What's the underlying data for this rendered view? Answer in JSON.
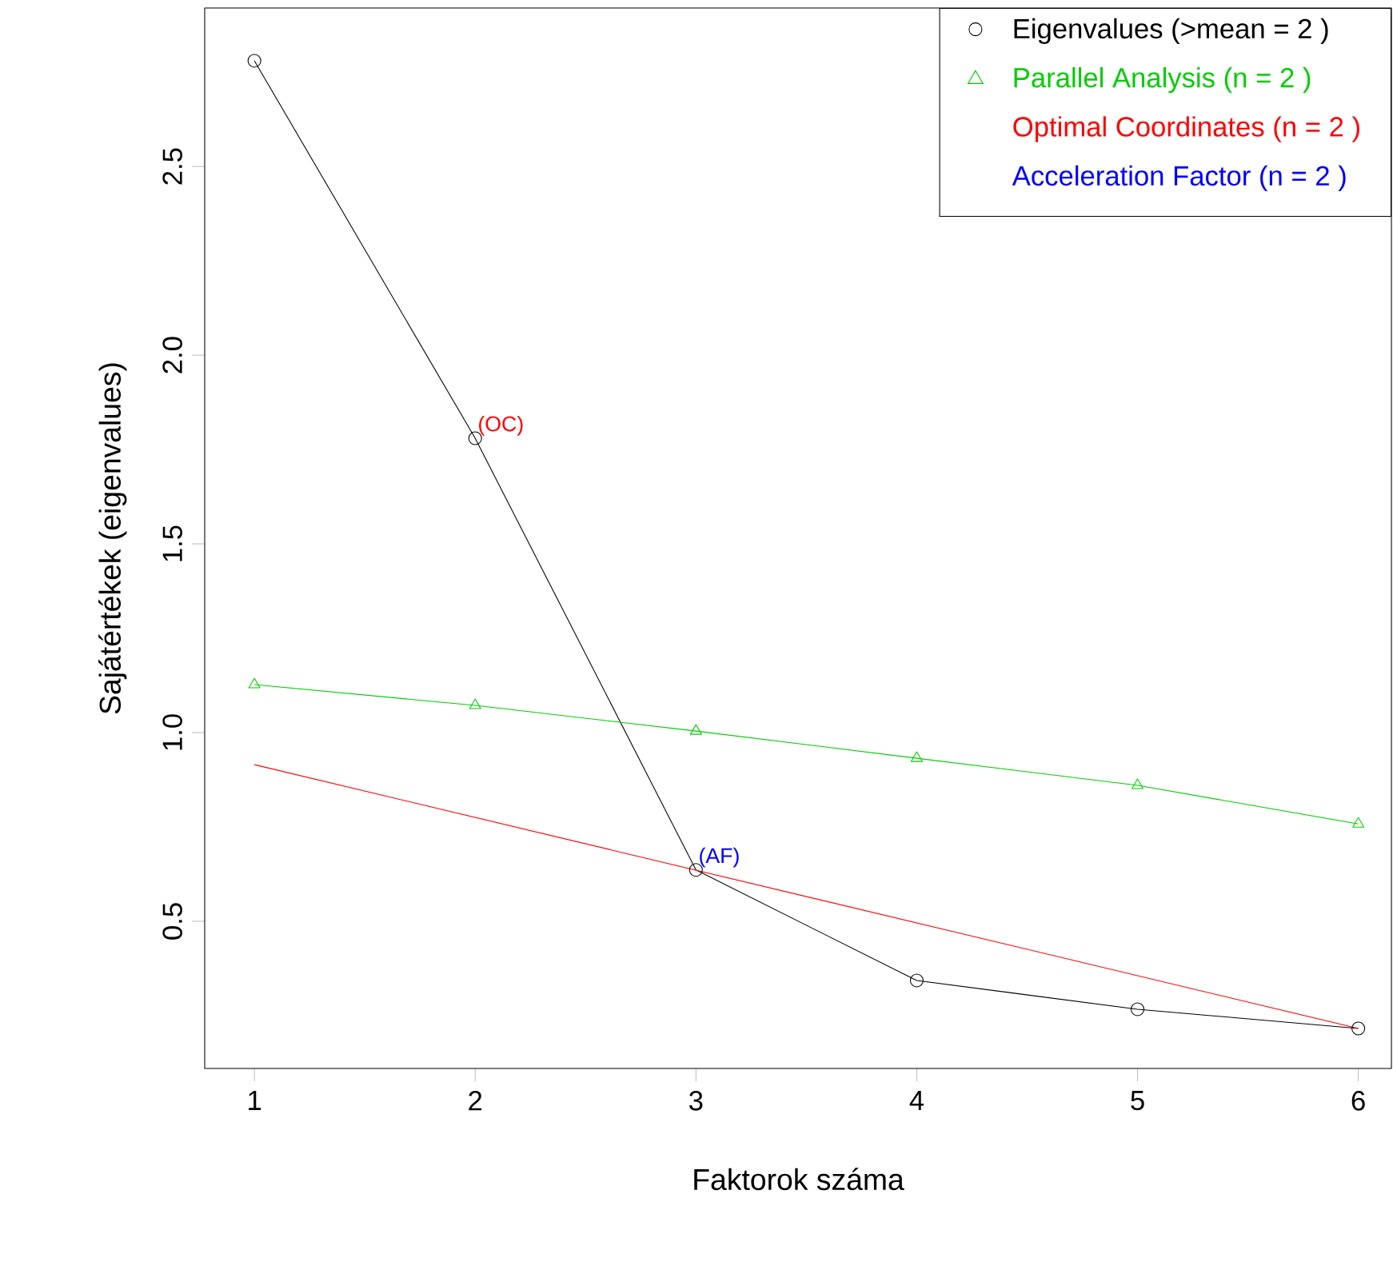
{
  "chart_data": {
    "type": "line",
    "xlabel": "Faktorok száma",
    "ylabel": "Sajátértékek (eigenvalues)",
    "x": [
      1,
      2,
      3,
      4,
      5,
      6
    ],
    "series": [
      {
        "name": "Eigenvalues (>mean  =  2 )",
        "color": "#000000",
        "marker": "circle",
        "values": [
          2.78,
          1.78,
          0.636,
          0.343,
          0.267,
          0.216
        ]
      },
      {
        "name": "Parallel Analysis (n =  2 )",
        "color": "#00cd00",
        "marker": "triangle",
        "values": [
          1.127,
          1.072,
          1.004,
          0.932,
          0.86,
          0.758
        ]
      },
      {
        "name": "Optimal Coordinates (n =  2 )",
        "color": "#ff0000",
        "marker": "none",
        "x": [
          1,
          6
        ],
        "values": [
          0.915,
          0.216
        ]
      },
      {
        "name": "Acceleration Factor (n =  2 )",
        "color": "#0000ff",
        "marker": "none",
        "values": [
          null,
          null,
          null,
          null,
          null,
          null
        ]
      }
    ],
    "annotations": [
      {
        "text": "(OC)",
        "x": 2,
        "y": 1.78
      },
      {
        "text": "(AF)",
        "x": 3,
        "y": 0.636
      }
    ],
    "xlim": [
      0.775,
      6.15
    ],
    "ylim": [
      0.11,
      2.92
    ],
    "xticks": [
      1,
      2,
      3,
      4,
      5,
      6
    ],
    "yticks": [
      {
        "value": 0.5,
        "label": "0.5"
      },
      {
        "value": 1.0,
        "label": "1.0"
      },
      {
        "value": 1.5,
        "label": "1.5"
      },
      {
        "value": 2.0,
        "label": "2.0"
      },
      {
        "value": 2.5,
        "label": "2.5"
      }
    ],
    "legend": "top right",
    "grid": false
  }
}
